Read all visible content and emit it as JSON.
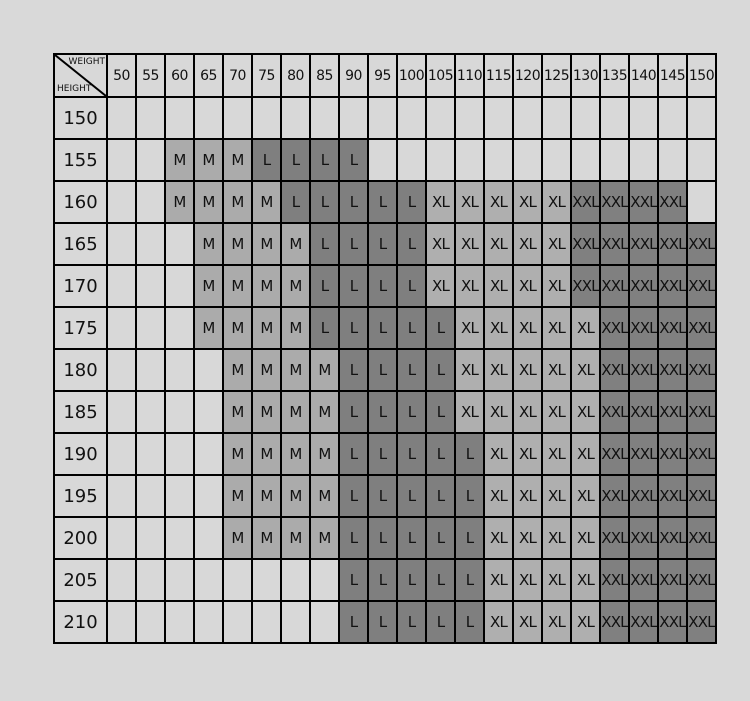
{
  "corner": {
    "weight_label": "WEIGHT",
    "height_label": "HEIGHT"
  },
  "colors": {
    "background": "#d9d9d9",
    "empty": "#d8d8d8",
    "M": "#ababab",
    "L": "#7f7f7f",
    "XL": "#afafaf",
    "XXL": "#808080"
  },
  "weights": [
    "50",
    "55",
    "60",
    "65",
    "70",
    "75",
    "80",
    "85",
    "90",
    "95",
    "100",
    "105",
    "110",
    "115",
    "120",
    "125",
    "130",
    "135",
    "140",
    "145",
    "150"
  ],
  "rows": [
    {
      "height": "150",
      "sizes": [
        "",
        "",
        "",
        "",
        "",
        "",
        "",
        "",
        "",
        "",
        "",
        "",
        "",
        "",
        "",
        "",
        "",
        "",
        "",
        "",
        ""
      ]
    },
    {
      "height": "155",
      "sizes": [
        "",
        "",
        "M",
        "M",
        "M",
        "L",
        "L",
        "L",
        "L",
        "",
        "",
        "",
        "",
        "",
        "",
        "",
        "",
        "",
        "",
        "",
        ""
      ]
    },
    {
      "height": "160",
      "sizes": [
        "",
        "",
        "M",
        "M",
        "M",
        "M",
        "L",
        "L",
        "L",
        "L",
        "L",
        "XL",
        "XL",
        "XL",
        "XL",
        "XL",
        "XXL",
        "XXL",
        "XXL",
        "XXL",
        ""
      ]
    },
    {
      "height": "165",
      "sizes": [
        "",
        "",
        "",
        "M",
        "M",
        "M",
        "M",
        "L",
        "L",
        "L",
        "L",
        "XL",
        "XL",
        "XL",
        "XL",
        "XL",
        "XXL",
        "XXL",
        "XXL",
        "XXL",
        "XXL"
      ]
    },
    {
      "height": "170",
      "sizes": [
        "",
        "",
        "",
        "M",
        "M",
        "M",
        "M",
        "L",
        "L",
        "L",
        "L",
        "XL",
        "XL",
        "XL",
        "XL",
        "XL",
        "XXL",
        "XXL",
        "XXL",
        "XXL",
        "XXL"
      ]
    },
    {
      "height": "175",
      "sizes": [
        "",
        "",
        "",
        "M",
        "M",
        "M",
        "M",
        "L",
        "L",
        "L",
        "L",
        "L",
        "XL",
        "XL",
        "XL",
        "XL",
        "XL",
        "XXL",
        "XXL",
        "XXL",
        "XXL"
      ]
    },
    {
      "height": "180",
      "sizes": [
        "",
        "",
        "",
        "",
        "M",
        "M",
        "M",
        "M",
        "L",
        "L",
        "L",
        "L",
        "XL",
        "XL",
        "XL",
        "XL",
        "XL",
        "XXL",
        "XXL",
        "XXL",
        "XXL"
      ]
    },
    {
      "height": "185",
      "sizes": [
        "",
        "",
        "",
        "",
        "M",
        "M",
        "M",
        "M",
        "L",
        "L",
        "L",
        "L",
        "XL",
        "XL",
        "XL",
        "XL",
        "XL",
        "XXL",
        "XXL",
        "XXL",
        "XXL"
      ]
    },
    {
      "height": "190",
      "sizes": [
        "",
        "",
        "",
        "",
        "M",
        "M",
        "M",
        "M",
        "L",
        "L",
        "L",
        "L",
        "L",
        "XL",
        "XL",
        "XL",
        "XL",
        "XXL",
        "XXL",
        "XXL",
        "XXL"
      ]
    },
    {
      "height": "195",
      "sizes": [
        "",
        "",
        "",
        "",
        "M",
        "M",
        "M",
        "M",
        "L",
        "L",
        "L",
        "L",
        "L",
        "XL",
        "XL",
        "XL",
        "XL",
        "XXL",
        "XXL",
        "XXL",
        "XXL"
      ]
    },
    {
      "height": "200",
      "sizes": [
        "",
        "",
        "",
        "",
        "M",
        "M",
        "M",
        "M",
        "L",
        "L",
        "L",
        "L",
        "L",
        "XL",
        "XL",
        "XL",
        "XL",
        "XXL",
        "XXL",
        "XXL",
        "XXL"
      ]
    },
    {
      "height": "205",
      "sizes": [
        "",
        "",
        "",
        "",
        "",
        "",
        "",
        "",
        "L",
        "L",
        "L",
        "L",
        "L",
        "XL",
        "XL",
        "XL",
        "XL",
        "XXL",
        "XXL",
        "XXL",
        "XXL"
      ]
    },
    {
      "height": "210",
      "sizes": [
        "",
        "",
        "",
        "",
        "",
        "",
        "",
        "",
        "L",
        "L",
        "L",
        "L",
        "L",
        "XL",
        "XL",
        "XL",
        "XL",
        "XXL",
        "XXL",
        "XXL",
        "XXL"
      ]
    }
  ]
}
